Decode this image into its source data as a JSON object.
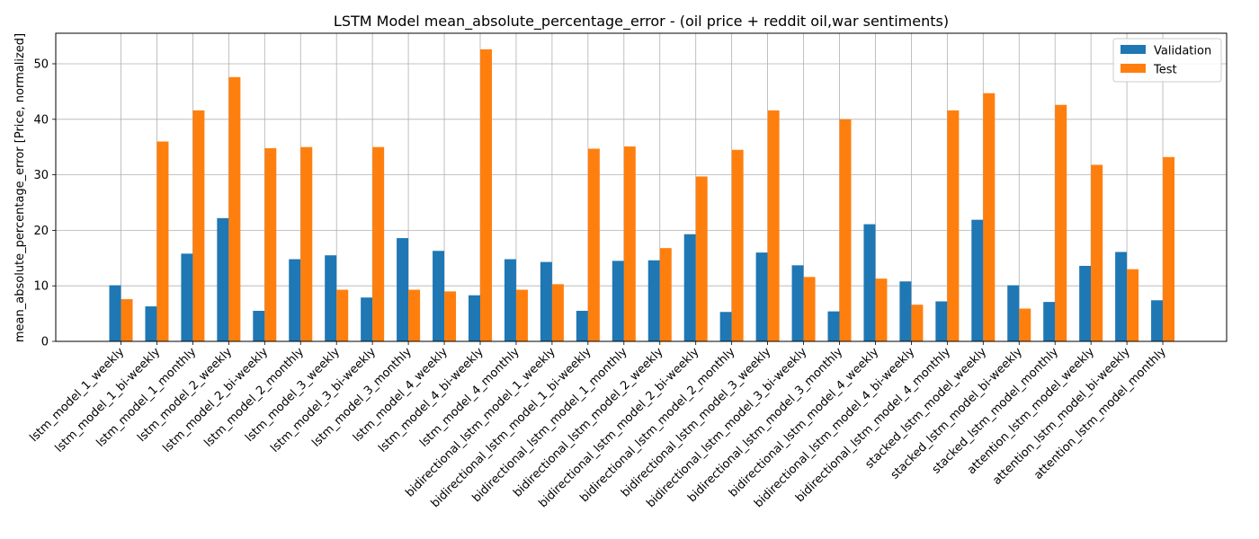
{
  "chart_data": {
    "type": "bar",
    "title": "LSTM Model mean_absolute_percentage_error - (oil price + reddit oil,war  sentiments)",
    "xlabel": "",
    "ylabel": "mean_absolute_percentage_error [Price, normalized]",
    "ylim": [
      0,
      55.5
    ],
    "yticks": [
      0,
      10,
      20,
      30,
      40,
      50
    ],
    "grid": true,
    "legend_position": "top-right",
    "categories": [
      "lstm_model_1_weekly",
      "lstm_model_1_bi-weekly",
      "lstm_model_1_monthly",
      "lstm_model_2_weekly",
      "lstm_model_2_bi-weekly",
      "lstm_model_2_monthly",
      "lstm_model_3_weekly",
      "lstm_model_3_bi-weekly",
      "lstm_model_3_monthly",
      "lstm_model_4_weekly",
      "lstm_model_4_bi-weekly",
      "lstm_model_4_monthly",
      "bidirectional_lstm_model_1_weekly",
      "bidirectional_lstm_model_1_bi-weekly",
      "bidirectional_lstm_model_1_monthly",
      "bidirectional_lstm_model_2_weekly",
      "bidirectional_lstm_model_2_bi-weekly",
      "bidirectional_lstm_model_2_monthly",
      "bidirectional_lstm_model_3_weekly",
      "bidirectional_lstm_model_3_bi-weekly",
      "bidirectional_lstm_model_3_monthly",
      "bidirectional_lstm_model_4_weekly",
      "bidirectional_lstm_model_4_bi-weekly",
      "bidirectional_lstm_model_4_monthly",
      "stacked_lstm_model_weekly",
      "stacked_lstm_model_bi-weekly",
      "stacked_lstm_model_monthly",
      "attention_lstm_model_weekly",
      "attention_lstm_model_bi-weekly",
      "attention_lstm_model_monthly"
    ],
    "series": [
      {
        "name": "Validation",
        "color": "#1f77b4",
        "values": [
          10.1,
          6.3,
          15.8,
          22.2,
          5.5,
          14.8,
          15.5,
          7.9,
          18.6,
          16.3,
          8.3,
          14.8,
          14.3,
          5.5,
          14.5,
          14.6,
          19.3,
          5.3,
          16.0,
          13.7,
          5.4,
          21.1,
          10.8,
          7.2,
          21.9,
          10.1,
          7.1,
          13.6,
          16.1,
          7.4
        ]
      },
      {
        "name": "Test",
        "color": "#ff7f0e",
        "values": [
          7.6,
          36.0,
          41.6,
          47.6,
          34.8,
          35.0,
          9.3,
          35.0,
          9.3,
          9.0,
          52.6,
          9.3,
          10.3,
          34.7,
          35.1,
          16.8,
          29.7,
          34.5,
          41.6,
          11.6,
          40.0,
          11.3,
          6.6,
          41.6,
          44.7,
          5.9,
          42.6,
          31.8,
          13.0,
          33.2
        ]
      }
    ]
  }
}
